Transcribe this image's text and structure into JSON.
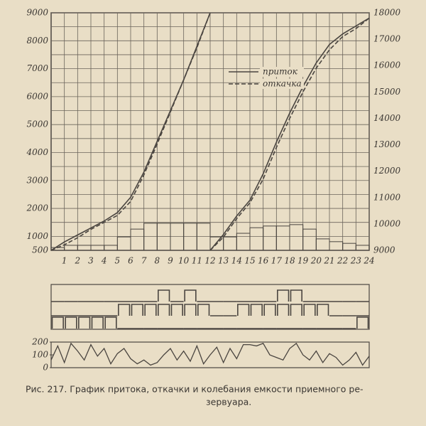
{
  "chart_data": [
    {
      "type": "line",
      "x": [
        0,
        1,
        2,
        3,
        4,
        5,
        6,
        7,
        8,
        9,
        10,
        11,
        12,
        13,
        14,
        15,
        16,
        17,
        18,
        19,
        20,
        21,
        22,
        23,
        24
      ],
      "xlim": [
        0,
        24
      ],
      "xticks": [
        1,
        2,
        3,
        4,
        5,
        6,
        7,
        8,
        9,
        10,
        11,
        12,
        13,
        14,
        15,
        16,
        17,
        18,
        19,
        20,
        21,
        22,
        23,
        24
      ],
      "ylim": [
        500,
        9000
      ],
      "yticks": [
        500,
        1000,
        2000,
        3000,
        4000,
        5000,
        6000,
        7000,
        8000,
        9000
      ],
      "y_minor_ticks": [
        1500,
        2500,
        3500,
        4500,
        5500,
        6500,
        7500,
        8500
      ],
      "y2lim": [
        9000,
        18000
      ],
      "y2ticks": [
        9000,
        10000,
        11000,
        12000,
        13000,
        14000,
        15000,
        16000,
        17000,
        18000
      ],
      "grid": true,
      "legend": [
        {
          "name": "приток",
          "dash": false
        },
        {
          "name": "откачка",
          "dash": true
        }
      ],
      "series": [
        {
          "color": "#4a4540",
          "dash": false,
          "axis": "y",
          "values": [
            500,
            800,
            1050,
            1300,
            1550,
            1850,
            2400,
            3300,
            4400,
            5500,
            6600,
            7800,
            9000,
            null,
            null,
            null,
            null,
            null,
            null,
            null,
            null,
            null,
            null,
            null,
            null
          ]
        },
        {
          "color": "#4a4540",
          "dash": true,
          "axis": "y",
          "values": [
            500,
            700,
            950,
            1250,
            1500,
            1750,
            2250,
            3200,
            4300,
            5450,
            6600,
            7750,
            9000,
            null,
            null,
            null,
            null,
            null,
            null,
            null,
            null,
            null,
            null,
            null,
            null
          ]
        },
        {
          "color": "#4a4540",
          "dash": false,
          "axis": "y2",
          "values": [
            null,
            null,
            null,
            null,
            null,
            null,
            null,
            null,
            null,
            null,
            null,
            null,
            9000,
            9600,
            10300,
            10900,
            11900,
            13100,
            14200,
            15200,
            16100,
            16800,
            17200,
            17500,
            17800
          ]
        },
        {
          "color": "#4a4540",
          "dash": true,
          "axis": "y2",
          "values": [
            null,
            null,
            null,
            null,
            null,
            null,
            null,
            null,
            null,
            null,
            null,
            null,
            9000,
            9500,
            10200,
            10800,
            11700,
            12900,
            14000,
            15000,
            15900,
            16600,
            17100,
            17400,
            17800
          ]
        }
      ],
      "bars": [
        600,
        680,
        680,
        680,
        680,
        980,
        1260,
        1470,
        1470,
        1470,
        1470,
        1470,
        980,
        980,
        1110,
        1310,
        1370,
        1370,
        1420,
        1260,
        910,
        810,
        750,
        680
      ]
    },
    {
      "type": "step",
      "xlim": [
        0,
        24
      ],
      "rows": [
        [
          0,
          0,
          0,
          0,
          0,
          0,
          0,
          0,
          1,
          0,
          1,
          0,
          0,
          0,
          0,
          0,
          0,
          1,
          1,
          0,
          0,
          0,
          0,
          0
        ],
        [
          0,
          0,
          0,
          0,
          0,
          1,
          1,
          1,
          1,
          1,
          1,
          1,
          0,
          0,
          1,
          1,
          1,
          1,
          1,
          1,
          1,
          0,
          0,
          0
        ],
        [
          1,
          1,
          1,
          1,
          1,
          0,
          0,
          0,
          0,
          0,
          0,
          0,
          0,
          0,
          0,
          0,
          0,
          0,
          0,
          0,
          0,
          0,
          0,
          1
        ]
      ]
    },
    {
      "type": "line",
      "x": [
        0,
        0.5,
        1,
        1.5,
        2,
        2.5,
        3,
        3.5,
        4,
        4.5,
        5,
        5.5,
        6,
        6.5,
        7,
        7.5,
        8,
        8.5,
        9,
        9.5,
        10,
        10.5,
        11,
        11.5,
        12,
        12.5,
        13,
        13.5,
        14,
        14.5,
        15,
        15.5,
        16,
        16.5,
        17,
        17.5,
        18,
        18.5,
        19,
        19.5,
        20,
        20.5,
        21,
        21.5,
        22,
        22.5,
        23,
        23.5,
        24
      ],
      "xlim": [
        0,
        24
      ],
      "ylim": [
        0,
        200
      ],
      "yticks": [
        0,
        100,
        200
      ],
      "series": [
        {
          "color": "#4a4540",
          "values": [
            60,
            170,
            40,
            190,
            130,
            60,
            180,
            90,
            150,
            30,
            110,
            150,
            70,
            30,
            60,
            20,
            40,
            100,
            150,
            60,
            130,
            50,
            170,
            30,
            100,
            160,
            40,
            150,
            70,
            180,
            180,
            170,
            190,
            100,
            80,
            60,
            150,
            190,
            100,
            60,
            130,
            40,
            110,
            80,
            20,
            60,
            120,
            20,
            90
          ]
        }
      ]
    }
  ],
  "caption": [
    "Рис. 217. График притока, откачки и колебания емкости приемного ре-",
    "зервуара."
  ]
}
